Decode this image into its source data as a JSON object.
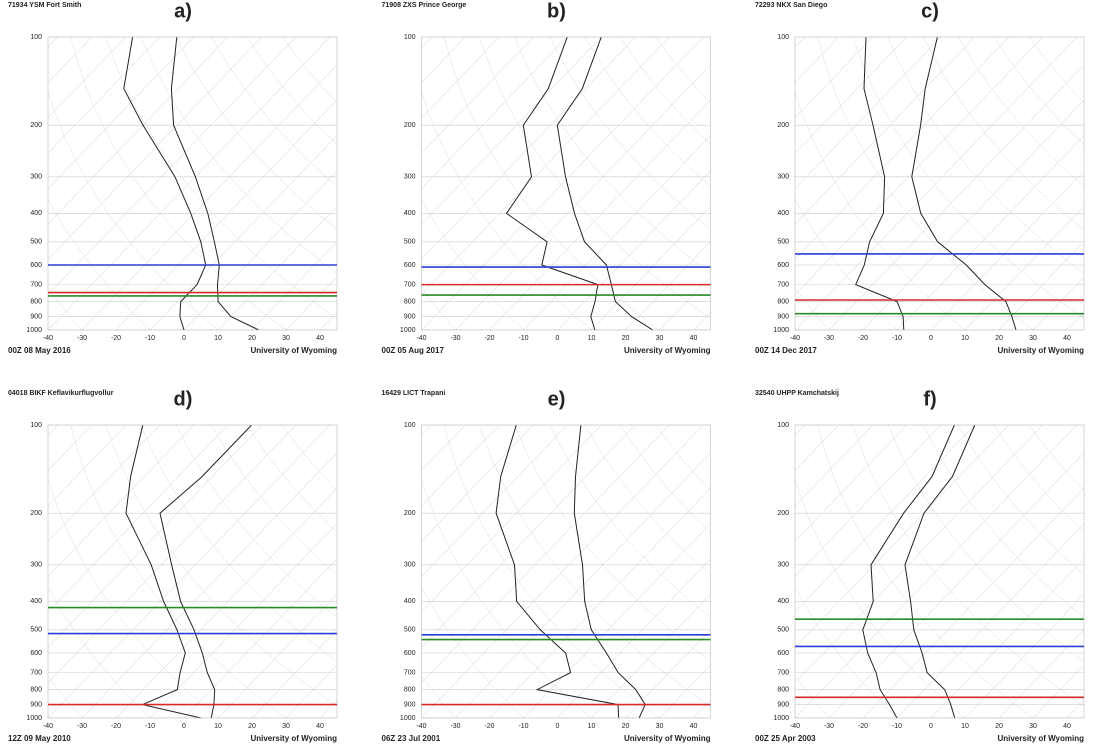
{
  "chart_data": [
    {
      "type": "skewt",
      "label": "a)",
      "title": "71934 YSM Fort Smith",
      "date": "00Z 08 May 2016",
      "source": "University of Wyoming",
      "y": [
        1000,
        900,
        800,
        700,
        600,
        500,
        400,
        300,
        200,
        150,
        100
      ],
      "series": [
        {
          "color": "#222222",
          "values": [
            22,
            10,
            2,
            -3,
            -8,
            -16,
            -26,
            -40,
            -61,
            -72,
            -85
          ]
        },
        {
          "color": "#222222",
          "values": [
            0,
            -5,
            -9,
            -9,
            -12,
            -20,
            -31,
            -46,
            -70,
            -86,
            -98
          ]
        }
      ],
      "hlines": [
        {
          "value": 600,
          "color": "#2a3fd6"
        },
        {
          "value": 745,
          "color": "#d62a2a"
        },
        {
          "value": 765,
          "color": "#2a8a2a"
        }
      ],
      "xlim": [
        -40,
        45
      ],
      "ylim": [
        1000,
        100
      ],
      "ylog": true,
      "xticks": [
        -40,
        -30,
        -20,
        -10,
        0,
        10,
        20,
        30,
        40
      ],
      "yticks": [
        100,
        200,
        300,
        400,
        500,
        600,
        700,
        800,
        900,
        1000
      ]
    },
    {
      "type": "skewt",
      "label": "b)",
      "title": "71908 ZXS Prince George",
      "date": "00Z 05 Aug 2017",
      "source": "University of Wyoming",
      "y": [
        1000,
        900,
        800,
        700,
        600,
        500,
        400,
        300,
        200,
        150,
        100
      ],
      "series": [
        {
          "color": "#222222",
          "values": [
            28,
            18,
            9,
            3,
            -4,
            -17,
            -28,
            -41,
            -58,
            -61,
            -70
          ]
        },
        {
          "color": "#222222",
          "values": [
            11,
            6,
            3,
            -1,
            -23,
            -28,
            -48,
            -51,
            -68,
            -71,
            -80
          ]
        }
      ],
      "hlines": [
        {
          "value": 610,
          "color": "#2a3fd6"
        },
        {
          "value": 700,
          "color": "#d62a2a"
        },
        {
          "value": 760,
          "color": "#2a8a2a"
        }
      ],
      "xlim": [
        -40,
        45
      ],
      "ylim": [
        1000,
        100
      ],
      "ylog": true,
      "xticks": [
        -40,
        -30,
        -20,
        -10,
        0,
        10,
        20,
        30,
        40
      ],
      "yticks": [
        100,
        200,
        300,
        400,
        500,
        600,
        700,
        800,
        900,
        1000
      ]
    },
    {
      "type": "skewt",
      "label": "c)",
      "title": "72293 NKX San Diego",
      "date": "00Z 14 Dec 2017",
      "source": "University of Wyoming",
      "y": [
        1000,
        900,
        800,
        700,
        600,
        500,
        400,
        300,
        200,
        150,
        100
      ],
      "series": [
        {
          "color": "#222222",
          "values": [
            25,
            20,
            14,
            3,
            -8,
            -23,
            -36,
            -49,
            -61,
            -70,
            -81
          ]
        },
        {
          "color": "#222222",
          "values": [
            -8,
            -12,
            -18,
            -35,
            -38,
            -43,
            -47,
            -57,
            -75,
            -88,
            -102
          ]
        }
      ],
      "hlines": [
        {
          "value": 550,
          "color": "#2a3fd6"
        },
        {
          "value": 790,
          "color": "#d62a2a"
        },
        {
          "value": 880,
          "color": "#2a8a2a"
        }
      ],
      "xlim": [
        -40,
        45
      ],
      "ylim": [
        1000,
        100
      ],
      "ylog": true,
      "xticks": [
        -40,
        -30,
        -20,
        -10,
        0,
        10,
        20,
        30,
        40
      ],
      "yticks": [
        100,
        200,
        300,
        400,
        500,
        600,
        700,
        800,
        900,
        1000
      ]
    },
    {
      "type": "skewt",
      "label": "d)",
      "title": "04018 BIKF Keflavikurflugvollur",
      "date": "12Z 09 May 2010",
      "source": "University of Wyoming",
      "y": [
        1000,
        900,
        800,
        700,
        600,
        500,
        400,
        300,
        200,
        150,
        100
      ],
      "series": [
        {
          "color": "#222222",
          "values": [
            8,
            5,
            1,
            -6,
            -13,
            -22,
            -34,
            -47,
            -65,
            -63,
            -63
          ]
        },
        {
          "color": "#222222",
          "values": [
            5,
            -16,
            -10,
            -14,
            -18,
            -27,
            -39,
            -53,
            -75,
            -84,
            -95
          ]
        }
      ],
      "hlines": [
        {
          "value": 420,
          "color": "#2a8a2a"
        },
        {
          "value": 515,
          "color": "#2a3fd6"
        },
        {
          "value": 900,
          "color": "#d62a2a"
        }
      ],
      "xlim": [
        -40,
        45
      ],
      "ylim": [
        1000,
        100
      ],
      "ylog": true,
      "xticks": [
        -40,
        -30,
        -20,
        -10,
        0,
        10,
        20,
        30,
        40
      ],
      "yticks": [
        100,
        200,
        300,
        400,
        500,
        600,
        700,
        800,
        900,
        1000
      ]
    },
    {
      "type": "skewt",
      "label": "e)",
      "title": "16429 LICT Trapani",
      "date": "06Z 23 Jul 2001",
      "source": "University of Wyoming",
      "y": [
        1000,
        900,
        800,
        700,
        600,
        500,
        400,
        300,
        200,
        150,
        100
      ],
      "series": [
        {
          "color": "#222222",
          "values": [
            24,
            22,
            15,
            5,
            -4,
            -15,
            -25,
            -36,
            -53,
            -63,
            -76
          ]
        },
        {
          "color": "#222222",
          "values": [
            18,
            14,
            -14,
            -9,
            -16,
            -30,
            -45,
            -56,
            -76,
            -85,
            -95
          ]
        }
      ],
      "hlines": [
        {
          "value": 520,
          "color": "#2a3fd6"
        },
        {
          "value": 540,
          "color": "#2a8a2a"
        },
        {
          "value": 900,
          "color": "#d62a2a"
        }
      ],
      "xlim": [
        -40,
        45
      ],
      "ylim": [
        1000,
        100
      ],
      "ylog": true,
      "xticks": [
        -40,
        -30,
        -20,
        -10,
        0,
        10,
        20,
        30,
        40
      ],
      "yticks": [
        100,
        200,
        300,
        400,
        500,
        600,
        700,
        800,
        900,
        1000
      ]
    },
    {
      "type": "skewt",
      "label": "f)",
      "title": "32540 UHPP Kamchatskij",
      "date": "00Z 25 Apr 2003",
      "source": "University of Wyoming",
      "y": [
        1000,
        900,
        800,
        700,
        600,
        500,
        400,
        300,
        200,
        150,
        100
      ],
      "series": [
        {
          "color": "#222222",
          "values": [
            7,
            2,
            -4,
            -14,
            -21,
            -30,
            -39,
            -51,
            -60,
            -62,
            -70
          ]
        },
        {
          "color": "#222222",
          "values": [
            -10,
            -16,
            -23,
            -29,
            -37,
            -45,
            -50,
            -61,
            -66,
            -68,
            -76
          ]
        }
      ],
      "hlines": [
        {
          "value": 460,
          "color": "#2a8a2a"
        },
        {
          "value": 570,
          "color": "#2a3fd6"
        },
        {
          "value": 850,
          "color": "#d62a2a"
        }
      ],
      "xlim": [
        -40,
        45
      ],
      "ylim": [
        1000,
        100
      ],
      "ylog": true,
      "xticks": [
        -40,
        -30,
        -20,
        -10,
        0,
        10,
        20,
        30,
        40
      ],
      "yticks": [
        100,
        200,
        300,
        400,
        500,
        600,
        700,
        800,
        900,
        1000
      ]
    }
  ]
}
